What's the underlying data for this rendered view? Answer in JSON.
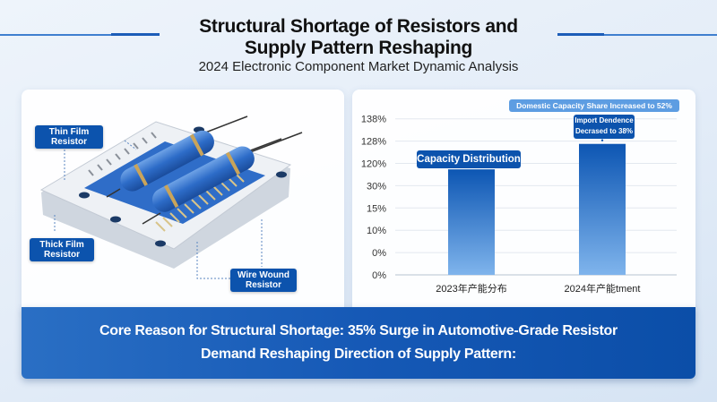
{
  "header": {
    "title_line1": "Structural Shortage of Resistors and",
    "title_line2": "Supply Pattern Reshaping",
    "subtitle": "2024 Electronic Component Market Dynamic Analysis"
  },
  "illustration": {
    "callouts": {
      "thin_film": [
        "Thin Film",
        "Resistor"
      ],
      "thick_film": [
        "Thick Film",
        "Resistor"
      ],
      "wire_wound": [
        "Wire Wound",
        "Resistor"
      ]
    }
  },
  "chart_data": {
    "type": "bar",
    "categories": [
      "2023年产能分布",
      "2024年产能tment"
    ],
    "values": [
      96,
      127
    ],
    "y_tick_labels": [
      "0%",
      "0%",
      "10%",
      "15%",
      "30%",
      "120%",
      "128%",
      "138%"
    ],
    "grid": true,
    "annotations": {
      "bar1": "Capacity Distribution",
      "bar2_line1": "Import Dendence",
      "bar2_line2": "Decrased to 38%",
      "top": "Domestic Capacity Share Increased to 52%"
    },
    "colors": {
      "bar_top": "#0d56b3",
      "bar_bottom": "#7fb4ec",
      "label_box": "#0c53ad",
      "top_box": "#5d9de2"
    }
  },
  "banner": {
    "line1": "Core Reason for Structural Shortage: 35% Surge in Automotive-Grade Resistor",
    "line2": "Demand Reshaping Direction of Supply Pattern:"
  }
}
